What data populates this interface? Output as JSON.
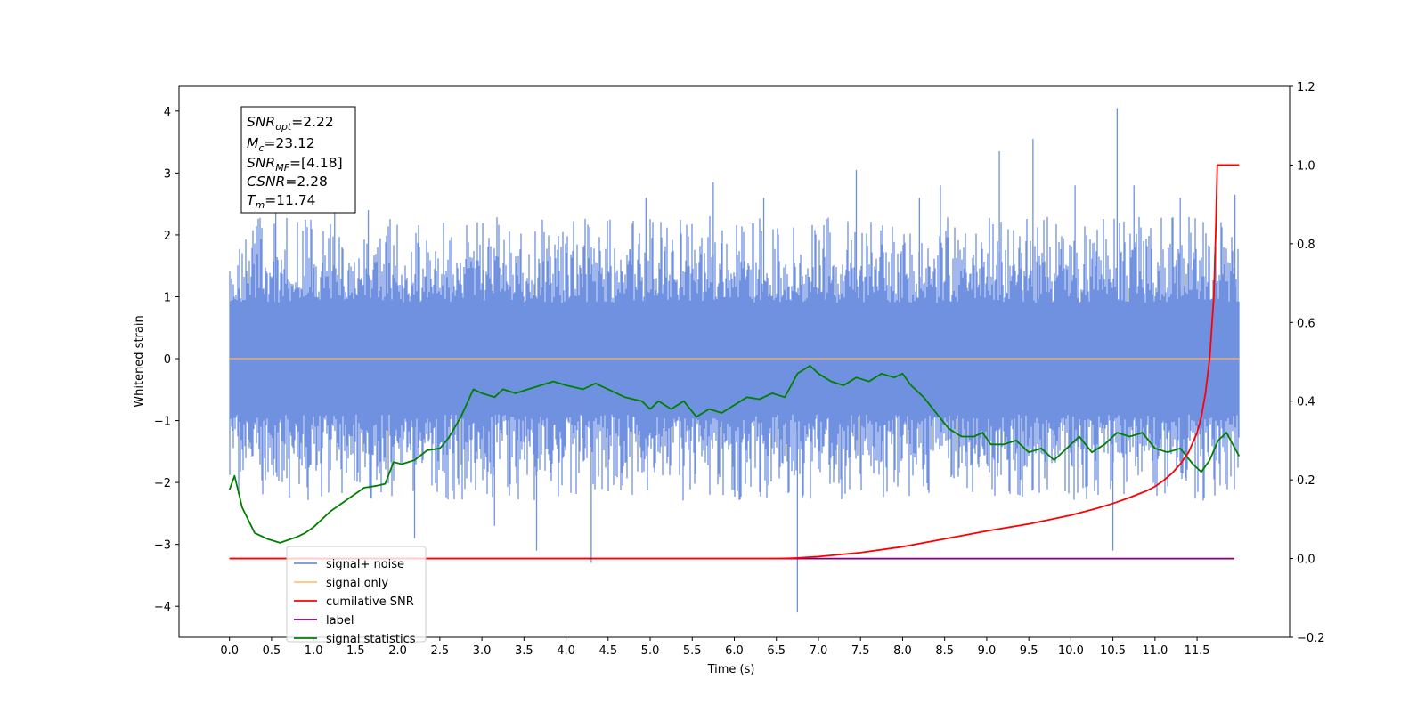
{
  "chart_data": {
    "type": "line",
    "xlabel": "Time (s)",
    "ylabel": "Whitened strain",
    "xlim": [
      -0.6,
      12.6
    ],
    "ylim": [
      -4.5,
      4.4
    ],
    "ylim_right": [
      -0.2,
      1.2
    ],
    "x_ticks": [
      "0.0",
      "0.5",
      "1.0",
      "1.5",
      "2.0",
      "2.5",
      "3.0",
      "3.5",
      "4.0",
      "4.5",
      "5.0",
      "5.5",
      "6.0",
      "6.5",
      "7.0",
      "7.5",
      "8.0",
      "8.5",
      "9.0",
      "9.5",
      "10.0",
      "10.5",
      "11.0",
      "11.5"
    ],
    "y_ticks_left": [
      "4",
      "3",
      "2",
      "1",
      "0",
      "−1",
      "−2",
      "−3",
      "−4"
    ],
    "y_ticks_right": [
      "1.2",
      "1.0",
      "0.8",
      "0.6",
      "0.4",
      "0.2",
      "0.0",
      "−0.2"
    ],
    "grid": false,
    "legend_position": "lower-left",
    "stats": {
      "snr_opt": "=2.22",
      "mc": "=23.12",
      "snr_mf": "=[4.18]",
      "csnr": "=2.28",
      "tm": "=11.74"
    },
    "series": [
      {
        "name": "signal+ noise",
        "axis": "left",
        "color": "#7090e0",
        "t_range": [
          0.0,
          12.0
        ],
        "envelope_typical": 1.3,
        "spikes": [
          [
            0.55,
            2.55
          ],
          [
            1.25,
            2.4
          ],
          [
            1.65,
            2.4
          ],
          [
            2.2,
            -2.9
          ],
          [
            3.15,
            -2.7
          ],
          [
            3.65,
            -3.1
          ],
          [
            4.3,
            -3.3
          ],
          [
            4.95,
            2.6
          ],
          [
            5.75,
            2.85
          ],
          [
            6.35,
            2.6
          ],
          [
            6.75,
            -4.1
          ],
          [
            7.45,
            3.05
          ],
          [
            8.2,
            2.6
          ],
          [
            8.45,
            2.8
          ],
          [
            9.15,
            3.35
          ],
          [
            9.55,
            3.55
          ],
          [
            10.05,
            2.8
          ],
          [
            10.55,
            4.05
          ],
          [
            10.5,
            -3.1
          ],
          [
            10.75,
            2.8
          ],
          [
            11.3,
            2.6
          ],
          [
            11.95,
            2.65
          ]
        ]
      },
      {
        "name": "signal only",
        "axis": "left",
        "color": "#ffb74d",
        "t_range": [
          0.0,
          12.0
        ],
        "chirp_peak_time": 11.74,
        "chirp_peak_amplitude": 0.42
      },
      {
        "name": "cumilative SNR",
        "axis": "right",
        "color": "#ff0000",
        "x": [
          0.0,
          6.0,
          6.5,
          6.7,
          7.0,
          7.5,
          8.0,
          8.5,
          9.0,
          9.5,
          10.0,
          10.3,
          10.5,
          10.7,
          10.9,
          11.0,
          11.1,
          11.2,
          11.3,
          11.4,
          11.5,
          11.55,
          11.6,
          11.65,
          11.7,
          11.72,
          11.74,
          11.76,
          12.0
        ],
        "values": [
          0.0,
          0.0,
          0.0,
          0.001,
          0.005,
          0.015,
          0.03,
          0.05,
          0.07,
          0.088,
          0.11,
          0.127,
          0.14,
          0.155,
          0.172,
          0.183,
          0.198,
          0.216,
          0.24,
          0.27,
          0.32,
          0.36,
          0.42,
          0.51,
          0.67,
          0.82,
          1.0,
          1.0,
          1.0
        ]
      },
      {
        "name": "label",
        "axis": "right",
        "color": "#7b007b",
        "x": [
          0.0,
          11.94
        ],
        "values": [
          0.0,
          0.0
        ]
      },
      {
        "name": "signal statistics",
        "axis": "right",
        "color": "#008000",
        "x": [
          0.0,
          0.06,
          0.15,
          0.3,
          0.45,
          0.6,
          0.8,
          0.9,
          1.0,
          1.2,
          1.4,
          1.6,
          1.75,
          1.85,
          1.95,
          2.05,
          2.2,
          2.35,
          2.5,
          2.6,
          2.75,
          2.9,
          3.0,
          3.15,
          3.25,
          3.4,
          3.55,
          3.7,
          3.85,
          4.0,
          4.2,
          4.35,
          4.5,
          4.7,
          4.9,
          5.0,
          5.1,
          5.25,
          5.4,
          5.55,
          5.7,
          5.85,
          6.0,
          6.15,
          6.3,
          6.45,
          6.6,
          6.75,
          6.9,
          7.0,
          7.15,
          7.3,
          7.45,
          7.6,
          7.75,
          7.9,
          8.0,
          8.1,
          8.25,
          8.4,
          8.55,
          8.7,
          8.85,
          8.95,
          9.05,
          9.2,
          9.35,
          9.5,
          9.65,
          9.8,
          9.95,
          10.1,
          10.25,
          10.4,
          10.55,
          10.7,
          10.85,
          11.0,
          11.15,
          11.3,
          11.45,
          11.55,
          11.65,
          11.75,
          11.85,
          12.0
        ],
        "values": [
          0.175,
          0.21,
          0.13,
          0.065,
          0.05,
          0.04,
          0.055,
          0.065,
          0.08,
          0.12,
          0.15,
          0.18,
          0.185,
          0.19,
          0.245,
          0.24,
          0.25,
          0.275,
          0.28,
          0.305,
          0.36,
          0.43,
          0.42,
          0.41,
          0.43,
          0.42,
          0.43,
          0.44,
          0.45,
          0.44,
          0.43,
          0.445,
          0.43,
          0.41,
          0.4,
          0.38,
          0.4,
          0.38,
          0.4,
          0.36,
          0.38,
          0.37,
          0.39,
          0.41,
          0.405,
          0.42,
          0.41,
          0.47,
          0.49,
          0.47,
          0.45,
          0.44,
          0.46,
          0.45,
          0.47,
          0.46,
          0.47,
          0.44,
          0.41,
          0.37,
          0.33,
          0.31,
          0.31,
          0.32,
          0.29,
          0.29,
          0.3,
          0.27,
          0.28,
          0.25,
          0.28,
          0.31,
          0.27,
          0.29,
          0.32,
          0.31,
          0.32,
          0.28,
          0.27,
          0.28,
          0.24,
          0.22,
          0.25,
          0.3,
          0.32,
          0.26
        ]
      }
    ]
  }
}
